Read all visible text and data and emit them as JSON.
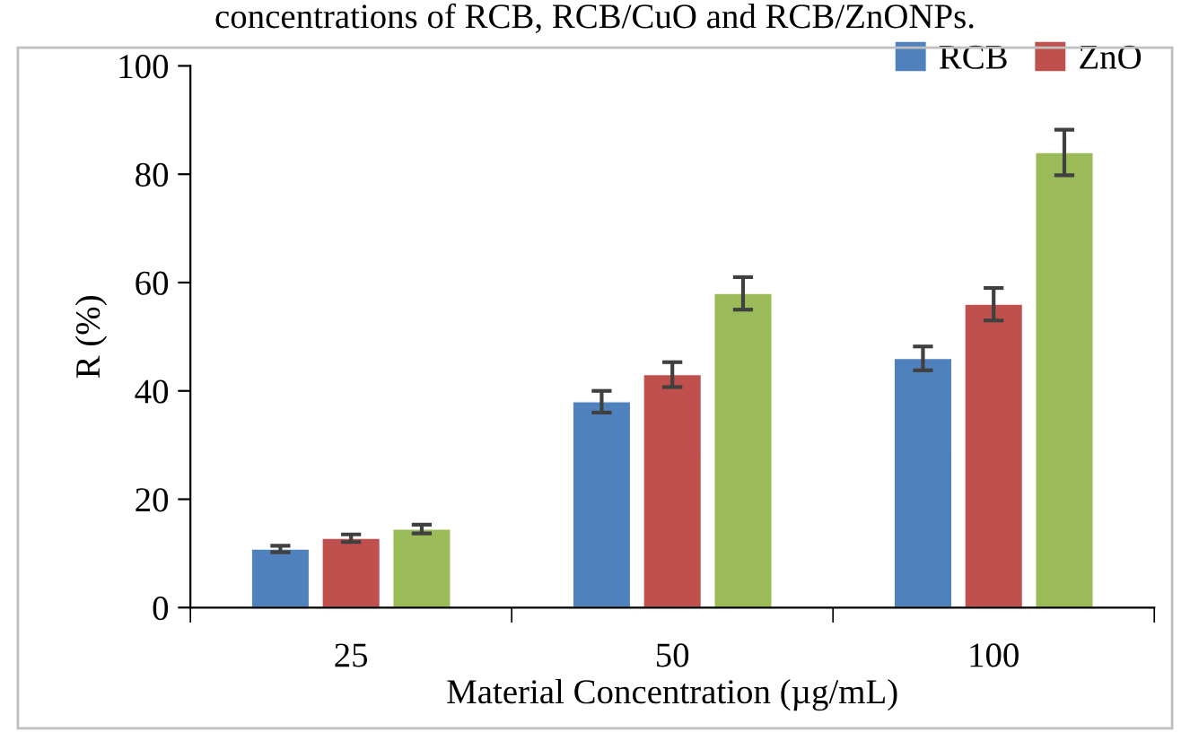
{
  "chart_data": {
    "type": "bar",
    "title": "concentrations of RCB, RCB/CuO and RCB/ZnONPs.",
    "xlabel": "Material Concentration (µg/mL)",
    "ylabel": "R (%)",
    "categories": [
      "25",
      "50",
      "100"
    ],
    "series": [
      {
        "name": "RCB",
        "color": "#4f81bd",
        "values": [
          10.8,
          38,
          46
        ],
        "errors": [
          0.6,
          2,
          2.2
        ]
      },
      {
        "name": "ZnO",
        "color": "#c0504d",
        "values": [
          12.8,
          43,
          56
        ],
        "errors": [
          0.7,
          2.3,
          3
        ]
      },
      {
        "color": "#9bbb59",
        "values": [
          14.5,
          58,
          84
        ],
        "errors": [
          0.8,
          3,
          4.2
        ]
      }
    ],
    "ylim": [
      0,
      100
    ],
    "yticks": [
      0,
      20,
      40,
      60,
      80,
      100
    ],
    "grid": false,
    "legend": "top right"
  }
}
